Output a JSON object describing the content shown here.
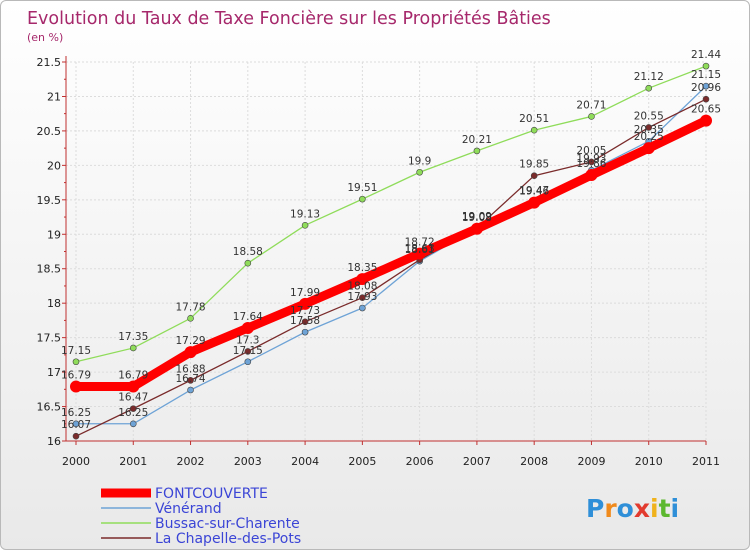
{
  "chart_data": {
    "type": "line",
    "title": "Evolution du Taux de Taxe Foncière sur les Propriétés Bâties",
    "ylabel": "(en %)",
    "xlabel": "",
    "ylim": [
      16,
      21.5
    ],
    "yticks": [
      "16",
      "16.5",
      "17",
      "17.5",
      "18",
      "18.5",
      "19",
      "19.5",
      "20",
      "20.5",
      "21",
      "21.5"
    ],
    "categories": [
      "2000",
      "2001",
      "2002",
      "2003",
      "2004",
      "2005",
      "2006",
      "2007",
      "2008",
      "2009",
      "2010",
      "2011"
    ],
    "series": [
      {
        "name": "Bussac-sur-Charente",
        "color": "#8fdc5a",
        "values": [
          17.15,
          17.35,
          17.78,
          18.58,
          19.13,
          19.51,
          19.9,
          20.21,
          20.51,
          20.71,
          21.12,
          21.44
        ],
        "labels": [
          "17.15",
          "17.35",
          "17.78",
          "18.58",
          "19.13",
          "19.51",
          "19.9",
          "20.21",
          "20.51",
          "20.71",
          "21.12",
          "21.44"
        ]
      },
      {
        "name": "Vénérand",
        "color": "#6ea3d6",
        "values": [
          16.25,
          16.25,
          16.74,
          17.15,
          17.58,
          17.93,
          18.61,
          19.09,
          19.47,
          19.93,
          20.35,
          21.15
        ],
        "labels": [
          "16.25",
          "16.25",
          "16.74",
          "17.15",
          "17.58",
          "17.93",
          "18.61",
          "19.09",
          "19.47",
          "19.93",
          "20.35",
          "21.15"
        ]
      },
      {
        "name": "La Chapelle-des-Pots",
        "color": "#7a2b2b",
        "values": [
          16.07,
          16.47,
          16.88,
          17.3,
          17.73,
          18.08,
          18.63,
          19.09,
          19.85,
          20.05,
          20.55,
          20.96
        ],
        "labels": [
          "16.07",
          "16.47",
          "16.88",
          "17.3",
          "17.73",
          "18.08",
          "18.63",
          "19.09",
          "19.85",
          "20.05",
          "20.55",
          "20.96"
        ]
      },
      {
        "name": "FONTCOUVERTE",
        "color": "#ff0000",
        "values": [
          16.79,
          16.79,
          17.29,
          17.64,
          17.99,
          18.35,
          18.72,
          19.08,
          19.46,
          19.86,
          20.25,
          20.65
        ],
        "labels": [
          "16.79",
          "16.79",
          "17.29",
          "17.64",
          "17.99",
          "18.35",
          "18.72",
          "19.08",
          "19.46",
          "19.86",
          "20.25",
          "20.65"
        ]
      }
    ],
    "legend": [
      "FONTCOUVERTE",
      "Vénérand",
      "Bussac-sur-Charente",
      "La Chapelle-des-Pots"
    ],
    "legend_position": "bottom-left"
  },
  "logo": {
    "text": "Proxiti"
  }
}
